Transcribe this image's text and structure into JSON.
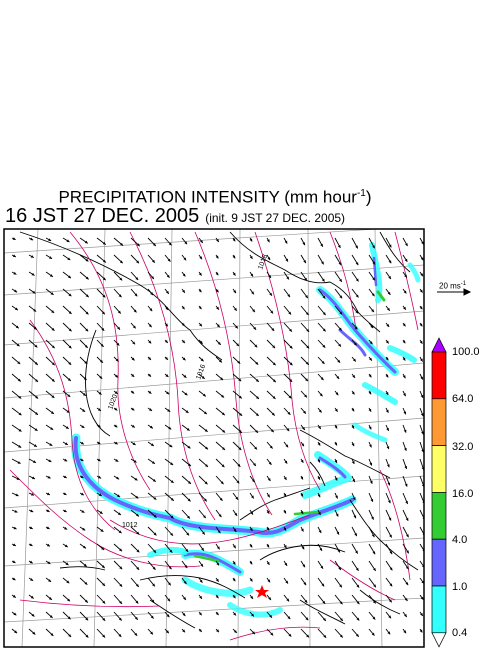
{
  "title": {
    "main": "PRECIPITATION INTENSITY (mm hour",
    "unit_exponent": "-1",
    "close": ")",
    "valid_time": "16 JST 27 DEC. 2005",
    "init_note": "(init. 9 JST 27 DEC. 2005)"
  },
  "wind_reference": {
    "label": "20 ms",
    "unit_exponent": "-1"
  },
  "colorbar": {
    "levels": [
      "100.0",
      "64.0",
      "32.0",
      "16.0",
      "4.0",
      "1.0",
      "0.4"
    ],
    "colors": [
      "#ff0000",
      "#ff9933",
      "#ffff66",
      "#33cc33",
      "#6666ff",
      "#33ffff"
    ],
    "over_color": "#aa00ff",
    "under_color": "#ffffff"
  },
  "isobar_labels": [
    "1018",
    "1016",
    "1020",
    "1012"
  ],
  "colors": {
    "isobar": "#cc0066",
    "coast": "#000000",
    "grid": "#999999",
    "wind_arrow": "#000000",
    "marker": "#ff0000"
  },
  "marker_icon": "red-star-icon"
}
